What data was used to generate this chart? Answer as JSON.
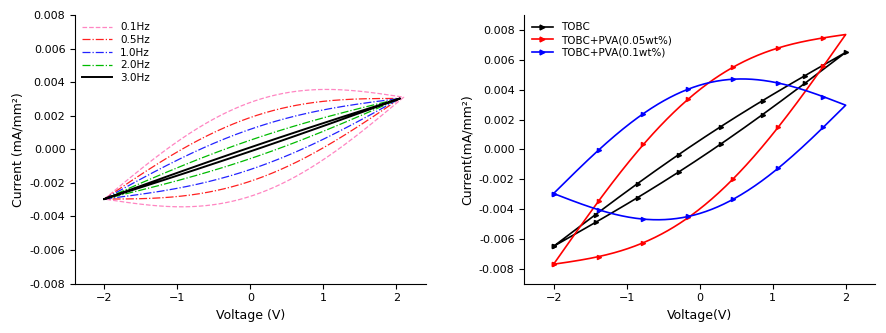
{
  "left_xlabel": "Voltage (V)",
  "left_ylabel": "Current (mA/mm²)",
  "right_xlabel": "Voltage(V)",
  "right_ylabel": "Current(mA/mm²)",
  "left_curves": [
    {
      "label": "0.1Hz",
      "color": "#FF85C2",
      "linestyle": "--",
      "lw": 0.9,
      "slope": 0.00148,
      "hw": 0.0028,
      "xmin": -2.0,
      "xmax": 2.1
    },
    {
      "label": "0.5Hz",
      "color": "#FF2020",
      "linestyle": "-.",
      "lw": 0.9,
      "slope": 0.00148,
      "hw": 0.0019,
      "xmin": -2.0,
      "xmax": 2.05
    },
    {
      "label": "1.0Hz",
      "color": "#2222FF",
      "linestyle": "-.",
      "lw": 0.9,
      "slope": 0.00148,
      "hw": 0.0012,
      "xmin": -2.0,
      "xmax": 2.05
    },
    {
      "label": "2.0Hz",
      "color": "#00BB00",
      "linestyle": "-.",
      "lw": 0.9,
      "slope": 0.00148,
      "hw": 0.00055,
      "xmin": -2.0,
      "xmax": 2.05
    },
    {
      "label": "3.0Hz",
      "color": "#000000",
      "linestyle": "-",
      "lw": 1.4,
      "slope": 0.00148,
      "hw": 0.00012,
      "xmin": -2.0,
      "xmax": 2.05
    }
  ],
  "right_curves": [
    {
      "label": "TOBC",
      "color": "#000000",
      "lw": 1.2,
      "slope": 0.00325,
      "hw": 0.0006,
      "xmin": -2.0,
      "xmax": 2.0,
      "n_markers": 15
    },
    {
      "label": "TOBC+PVA(0.05wt%)",
      "color": "#FF0000",
      "lw": 1.2,
      "slope": 0.00385,
      "hw": 0.004,
      "xmin": -2.0,
      "xmax": 2.0,
      "n_markers": 14
    },
    {
      "label": "TOBC+PVA(0.1wt%)",
      "color": "#0000FF",
      "lw": 1.2,
      "slope": 0.00148,
      "hw": 0.0043,
      "xmin": -2.0,
      "xmax": 2.0,
      "n_markers": 14
    }
  ],
  "left_xlim": [
    -2.4,
    2.4
  ],
  "left_ylim": [
    -0.008,
    0.008
  ],
  "left_xticks": [
    -2,
    -1,
    0,
    1,
    2
  ],
  "left_yticks": [
    -0.008,
    -0.006,
    -0.004,
    -0.002,
    0.0,
    0.002,
    0.004,
    0.006,
    0.008
  ],
  "right_xlim": [
    -2.4,
    2.4
  ],
  "right_ylim": [
    -0.009,
    0.009
  ],
  "right_xticks": [
    -2,
    -1,
    0,
    1,
    2
  ],
  "right_yticks": [
    -0.008,
    -0.006,
    -0.004,
    -0.002,
    0.0,
    0.002,
    0.004,
    0.006,
    0.008
  ]
}
